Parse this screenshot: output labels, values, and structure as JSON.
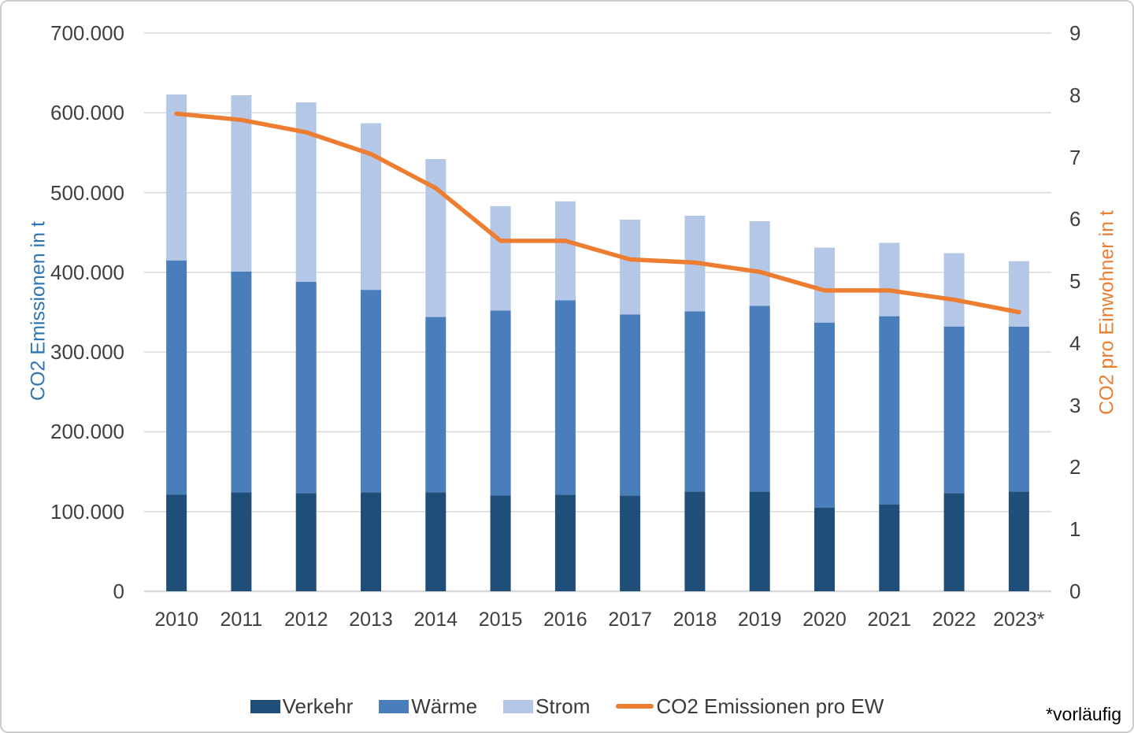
{
  "chart_data": {
    "type": "bar",
    "subtype": "stacked-bars-with-secondary-axis-line",
    "categories": [
      "2010",
      "2011",
      "2012",
      "2013",
      "2014",
      "2015",
      "2016",
      "2017",
      "2018",
      "2019",
      "2020",
      "2021",
      "2022",
      "2023*"
    ],
    "series": [
      {
        "name": "Verkehr",
        "kind": "bar",
        "axis": "left",
        "color": "#1F4E79",
        "values": [
          121000,
          124000,
          123000,
          124000,
          124000,
          120000,
          121000,
          120000,
          125000,
          125000,
          105000,
          109000,
          123000,
          125000
        ]
      },
      {
        "name": "Wärme",
        "kind": "bar",
        "axis": "left",
        "color": "#4A7EBB",
        "values": [
          294000,
          277000,
          265000,
          254000,
          220000,
          232000,
          244000,
          227000,
          226000,
          233000,
          232000,
          236000,
          209000,
          207000
        ]
      },
      {
        "name": "Strom",
        "kind": "bar",
        "axis": "left",
        "color": "#B4C7E7",
        "values": [
          208000,
          221000,
          225000,
          209000,
          198000,
          131000,
          124000,
          119000,
          120000,
          106000,
          94000,
          92000,
          92000,
          82000
        ]
      },
      {
        "name": "CO2 Emissionen pro EW",
        "kind": "line",
        "axis": "right",
        "color": "#ED7D31",
        "values": [
          7.7,
          7.6,
          7.4,
          7.05,
          6.5,
          5.65,
          5.65,
          5.35,
          5.3,
          5.15,
          4.85,
          4.85,
          4.7,
          4.5
        ]
      }
    ],
    "ylabel_left": "CO2 Emissionen in t",
    "ylabel_left_color": "#2E75B6",
    "ylabel_right": "CO2  pro Einwohner in t",
    "ylabel_right_color": "#ED7D31",
    "ylim_left": [
      0,
      700000
    ],
    "ylim_right": [
      0,
      9
    ],
    "yticks_left": [
      {
        "v": 0,
        "label": "0"
      },
      {
        "v": 100000,
        "label": "100.000"
      },
      {
        "v": 200000,
        "label": "200.000"
      },
      {
        "v": 300000,
        "label": "300.000"
      },
      {
        "v": 400000,
        "label": "400.000"
      },
      {
        "v": 500000,
        "label": "500.000"
      },
      {
        "v": 600000,
        "label": "600.000"
      },
      {
        "v": 700000,
        "label": "700.000"
      }
    ],
    "yticks_right": [
      {
        "v": 0,
        "label": "0"
      },
      {
        "v": 1,
        "label": "1"
      },
      {
        "v": 2,
        "label": "2"
      },
      {
        "v": 3,
        "label": "3"
      },
      {
        "v": 4,
        "label": "4"
      },
      {
        "v": 5,
        "label": "5"
      },
      {
        "v": 6,
        "label": "6"
      },
      {
        "v": 7,
        "label": "7"
      },
      {
        "v": 8,
        "label": "8"
      },
      {
        "v": 9,
        "label": "9"
      }
    ],
    "grid": true,
    "gridline_color": "#D9D9D9",
    "legend_position": "bottom"
  },
  "footnote": "*vorläufig"
}
